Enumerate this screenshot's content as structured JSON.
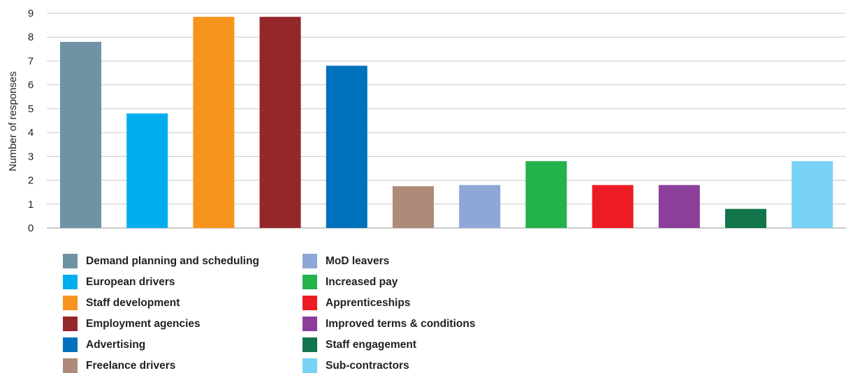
{
  "chart_data": {
    "type": "bar",
    "title": "",
    "xlabel": "",
    "ylabel": "Number of responses",
    "ylim": [
      0,
      9
    ],
    "yticks": [
      0,
      1,
      2,
      3,
      4,
      5,
      6,
      7,
      8,
      9
    ],
    "grid": true,
    "legend_placement": "bottom",
    "categories": [
      "Demand planning and scheduling",
      "European drivers",
      "Staff development",
      "Employment agencies",
      "Advertising",
      "Freelance drivers",
      "MoD leavers",
      "Increased pay",
      "Apprenticeships",
      "Improved terms & conditions",
      "Staff engagement",
      "Sub-contractors"
    ],
    "values": [
      7.8,
      4.8,
      8.85,
      8.85,
      6.8,
      1.75,
      1.8,
      2.8,
      1.8,
      1.8,
      0.8,
      2.8
    ],
    "colors": [
      "#6e93a4",
      "#00aeef",
      "#f7941d",
      "#94272a",
      "#0071bc",
      "#ad8b78",
      "#8fa7d6",
      "#24b24b",
      "#ed1c24",
      "#8b3f9b",
      "#11744a",
      "#78d2f5"
    ]
  }
}
